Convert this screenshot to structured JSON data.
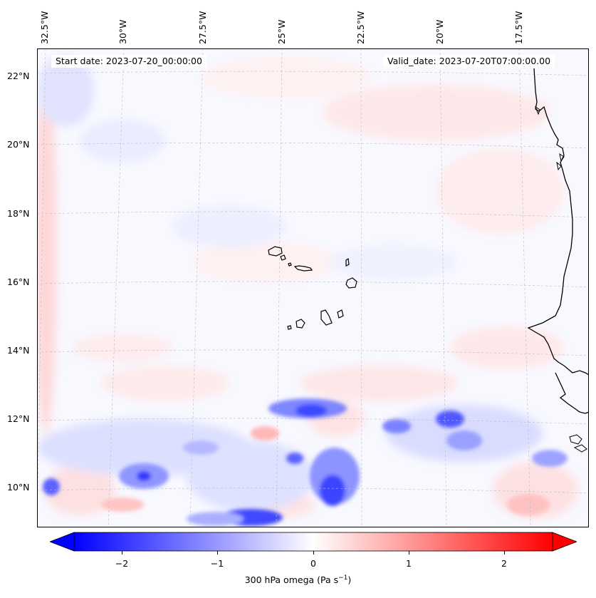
{
  "header": {
    "start_date": "Start date: 2023-07-20_00:00:00",
    "valid_date": "Valid_date: 2023-07-20T07:00:00.00"
  },
  "map": {
    "lon_labels": [
      "32.5°W",
      "30°W",
      "27.5°W",
      "25°W",
      "22.5°W",
      "20°W",
      "17.5°W"
    ],
    "lat_labels": [
      "22°N",
      "20°N",
      "18°N",
      "16°N",
      "14°N",
      "12°N",
      "10°N"
    ],
    "colors": {
      "negative": "#0000ff",
      "zero": "#ffffff",
      "positive": "#ff0000",
      "coastline": "#000000"
    }
  },
  "colorbar": {
    "ticks": [
      "−2",
      "−1",
      "0",
      "1",
      "2"
    ],
    "label_prefix": "300 hPa omega (Pa s",
    "label_exp": "−1",
    "label_suffix": ")"
  }
}
